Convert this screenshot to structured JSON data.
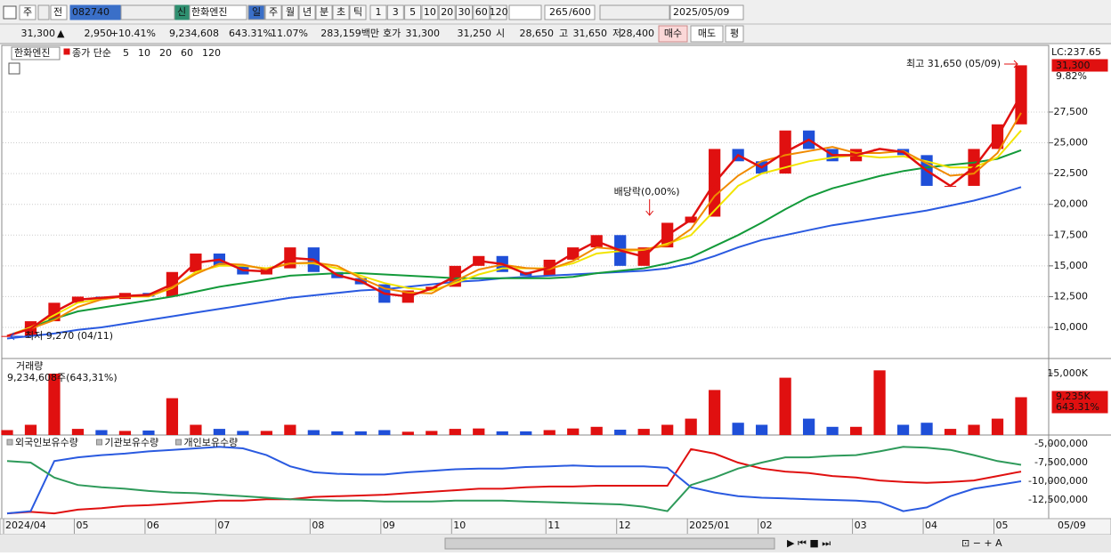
{
  "toolbar": {
    "market": "주",
    "prev": "전",
    "code": "082740",
    "credit": "신",
    "name": "한화엔진",
    "periods": [
      "일",
      "주",
      "월",
      "년",
      "분",
      "초",
      "틱"
    ],
    "intervals": [
      "1",
      "3",
      "5",
      "10",
      "20",
      "30",
      "60",
      "120"
    ],
    "count": "265",
    "max": "/600",
    "date": "2025/05/09"
  },
  "quote": {
    "price": "31,300",
    "arrow": "▲",
    "change": "2,950",
    "rate": "+10.41%",
    "volume": "9,234,608",
    "volume_rate": "643.31%",
    "turnover": "11.07%",
    "amount": "283,159백만",
    "bid_label": "호가",
    "ask": "31,300",
    "bid": "31,250",
    "open_label": "시",
    "open": "28,650",
    "high_label": "고",
    "high": "31,650",
    "low_label": "저",
    "low": "28,400",
    "buy": "매수",
    "sell": "매도",
    "avg": "평"
  },
  "chart_data": [
    {
      "type": "candlestick",
      "name": "한화엔진",
      "label": "종가 단순",
      "lc": "LC:237.65",
      "last_label": "31,300",
      "last_rate": "9.82%",
      "annotations": {
        "high": "최고 31,650 (05/09)",
        "low": "최저 9,270 (04/11)",
        "dividend": "배당락(0,00%)"
      },
      "up_color": "#e01010",
      "down_color": "#1f4fd8",
      "values": [
        9300,
        10500,
        12000,
        12500,
        12300,
        12800,
        12500,
        14500,
        16000,
        15000,
        14300,
        14800,
        16500,
        14500,
        14000,
        13500,
        12000,
        13000,
        13300,
        15000,
        15800,
        14500,
        14200,
        15500,
        16500,
        17500,
        15000,
        16500,
        18500,
        19000,
        24500,
        23500,
        22500,
        26000,
        24500,
        23500,
        24500,
        24500,
        24000,
        21500,
        21500,
        24500,
        26500,
        31300
      ],
      "series": [
        {
          "name": "5",
          "color": "#e01010",
          "values": [
            9300,
            9900,
            11250,
            12250,
            12400,
            12550,
            12650,
            13500,
            15250,
            15500,
            14650,
            14550,
            15650,
            15500,
            14250,
            13750,
            12750,
            12500,
            13150,
            14150,
            15400,
            15150,
            14350,
            14850,
            16000,
            17000,
            16250,
            15750,
            17500,
            18750,
            21750,
            24000,
            23000,
            24250,
            25250,
            24000,
            24000,
            24500,
            24250,
            22750,
            21500,
            23000,
            25500,
            28900
          ]
        },
        {
          "name": "10",
          "color": "#f08a00",
          "values": [
            9300,
            9900,
            10600,
            11670,
            12270,
            12530,
            12530,
            13270,
            14330,
            15170,
            15100,
            14700,
            15200,
            15270,
            15000,
            14000,
            13170,
            12830,
            12770,
            13770,
            14700,
            15100,
            14830,
            14730,
            15400,
            16500,
            16330,
            16330,
            16670,
            18000,
            20670,
            22330,
            23500,
            24000,
            24330,
            24670,
            24170,
            24170,
            24330,
            23330,
            22330,
            22500,
            24170,
            27430
          ]
        },
        {
          "name": "20",
          "color": "#f2e400",
          "values": [
            9300,
            10000,
            11000,
            12000,
            12300,
            12500,
            12500,
            13200,
            14500,
            15000,
            15000,
            14800,
            15200,
            15200,
            14800,
            14200,
            13600,
            13200,
            13000,
            13600,
            14300,
            14800,
            14800,
            14800,
            15200,
            16000,
            16200,
            16300,
            16800,
            17500,
            19500,
            21500,
            22500,
            23000,
            23500,
            23800,
            24000,
            23800,
            23900,
            23500,
            23000,
            23000,
            23800,
            26000
          ]
        },
        {
          "name": "60",
          "color": "#139a3a",
          "values": [
            9300,
            10000,
            10700,
            11300,
            11600,
            11900,
            12200,
            12500,
            12900,
            13300,
            13600,
            13900,
            14200,
            14300,
            14400,
            14400,
            14300,
            14200,
            14100,
            14000,
            14000,
            14000,
            14000,
            14000,
            14100,
            14400,
            14600,
            14800,
            15200,
            15700,
            16600,
            17500,
            18500,
            19600,
            20600,
            21300,
            21800,
            22300,
            22700,
            23000,
            23200,
            23400,
            23700,
            24400
          ]
        },
        {
          "name": "120",
          "color": "#2a5ae0",
          "values": [
            9100,
            9300,
            9500,
            9800,
            10000,
            10300,
            10600,
            10900,
            11200,
            11500,
            11800,
            12100,
            12400,
            12600,
            12800,
            13000,
            13100,
            13300,
            13500,
            13700,
            13800,
            14000,
            14100,
            14200,
            14300,
            14400,
            14500,
            14600,
            14800,
            15200,
            15800,
            16500,
            17100,
            17500,
            17900,
            18300,
            18600,
            18900,
            19200,
            19500,
            19900,
            20300,
            20800,
            21400
          ]
        }
      ],
      "ylim": [
        7470,
        32630
      ],
      "yticks": [
        {
          "value": 10000,
          "label": "10,000"
        },
        {
          "value": 12500,
          "label": "12,500"
        },
        {
          "value": 15000,
          "label": "15,000"
        },
        {
          "value": 17500,
          "label": "17,500"
        },
        {
          "value": 20000,
          "label": "20,000"
        },
        {
          "value": 22500,
          "label": "22,500"
        },
        {
          "value": 25000,
          "label": "25,000"
        },
        {
          "value": 27500,
          "label": "27,500"
        }
      ],
      "grid": true
    },
    {
      "type": "bar",
      "title": "거래량",
      "subtitle": "9,234,608주(643,31%)",
      "last_label": "9,235K",
      "last_rate": "643.31%",
      "values": [
        1200,
        2500,
        15000,
        1500,
        1200,
        1000,
        1100,
        9000,
        2500,
        1500,
        1000,
        1000,
        2500,
        1200,
        900,
        900,
        1200,
        800,
        1000,
        1500,
        1600,
        900,
        900,
        1200,
        1600,
        2000,
        1300,
        1500,
        2500,
        4000,
        11000,
        3000,
        2500,
        14000,
        4000,
        2000,
        2000,
        15800,
        2500,
        3000,
        1500,
        2500,
        4000,
        9235
      ],
      "ylim": [
        0,
        18260
      ],
      "yticks": [
        {
          "value": 15000,
          "label": "15,000K"
        }
      ]
    },
    {
      "type": "line",
      "categories": [
        "2024/04",
        null,
        null,
        "05",
        null,
        null,
        "06",
        null,
        null,
        "07",
        null,
        null,
        null,
        "08",
        null,
        null,
        "09",
        null,
        null,
        "10",
        null,
        null,
        null,
        "11",
        null,
        null,
        "12",
        null,
        null,
        "2025/01",
        null,
        null,
        "02",
        null,
        null,
        null,
        "03",
        null,
        null,
        "04",
        null,
        null,
        "05",
        null
      ],
      "last_date": "05/09",
      "series": [
        {
          "name": "외국인보유수량",
          "color": "#e01010",
          "values": [
            -14300000,
            -14100000,
            -14300000,
            -13800000,
            -13600000,
            -13300000,
            -13200000,
            -13000000,
            -12800000,
            -12600000,
            -12600000,
            -12400000,
            -12400000,
            -12100000,
            -12000000,
            -11900000,
            -11800000,
            -11600000,
            -11400000,
            -11200000,
            -11000000,
            -11000000,
            -10800000,
            -10700000,
            -10700000,
            -10600000,
            -10600000,
            -10600000,
            -10600000,
            -5700000,
            -6300000,
            -7500000,
            -8300000,
            -8700000,
            -8900000,
            -9300000,
            -9500000,
            -9900000,
            -10100000,
            -10200000,
            -10100000,
            -9900000,
            -9300000,
            -8700000
          ]
        },
        {
          "name": "기관보유수량",
          "color": "#2a5ae0",
          "values": [
            -14300000,
            -14000000,
            -7300000,
            -6800000,
            -6500000,
            -6300000,
            -6000000,
            -5800000,
            -5600000,
            -5400000,
            -5600000,
            -6500000,
            -8000000,
            -8800000,
            -9000000,
            -9100000,
            -9100000,
            -8800000,
            -8600000,
            -8400000,
            -8300000,
            -8300000,
            -8100000,
            -8000000,
            -7900000,
            -8000000,
            -8000000,
            -8000000,
            -8200000,
            -10800000,
            -11500000,
            -12000000,
            -12200000,
            -12300000,
            -12400000,
            -12500000,
            -12600000,
            -12800000,
            -14000000,
            -13500000,
            -12000000,
            -11000000,
            -10500000,
            -10000000
          ]
        },
        {
          "name": "개인보유수량",
          "color": "#2e9a5a",
          "values": [
            -7300000,
            -7500000,
            -9500000,
            -10500000,
            -10800000,
            -11000000,
            -11300000,
            -11500000,
            -11600000,
            -11800000,
            -12000000,
            -12200000,
            -12400000,
            -12500000,
            -12600000,
            -12600000,
            -12700000,
            -12700000,
            -12700000,
            -12600000,
            -12600000,
            -12600000,
            -12700000,
            -12800000,
            -12900000,
            -13000000,
            -13100000,
            -13400000,
            -14000000,
            -10500000,
            -9500000,
            -8300000,
            -7500000,
            -6800000,
            -6800000,
            -6600000,
            -6500000,
            -6000000,
            -5400000,
            -5500000,
            -5800000,
            -6500000,
            -7300000,
            -7800000
          ]
        }
      ],
      "ylim": [
        -15000000,
        -4170000
      ],
      "yticks": [
        {
          "value": -5000000,
          "label": "-5,000,000"
        },
        {
          "value": -7500000,
          "label": "-7,500,000"
        },
        {
          "value": -10000000,
          "label": "-10,000,000"
        },
        {
          "value": -12500000,
          "label": "-12,500,000"
        }
      ]
    }
  ]
}
